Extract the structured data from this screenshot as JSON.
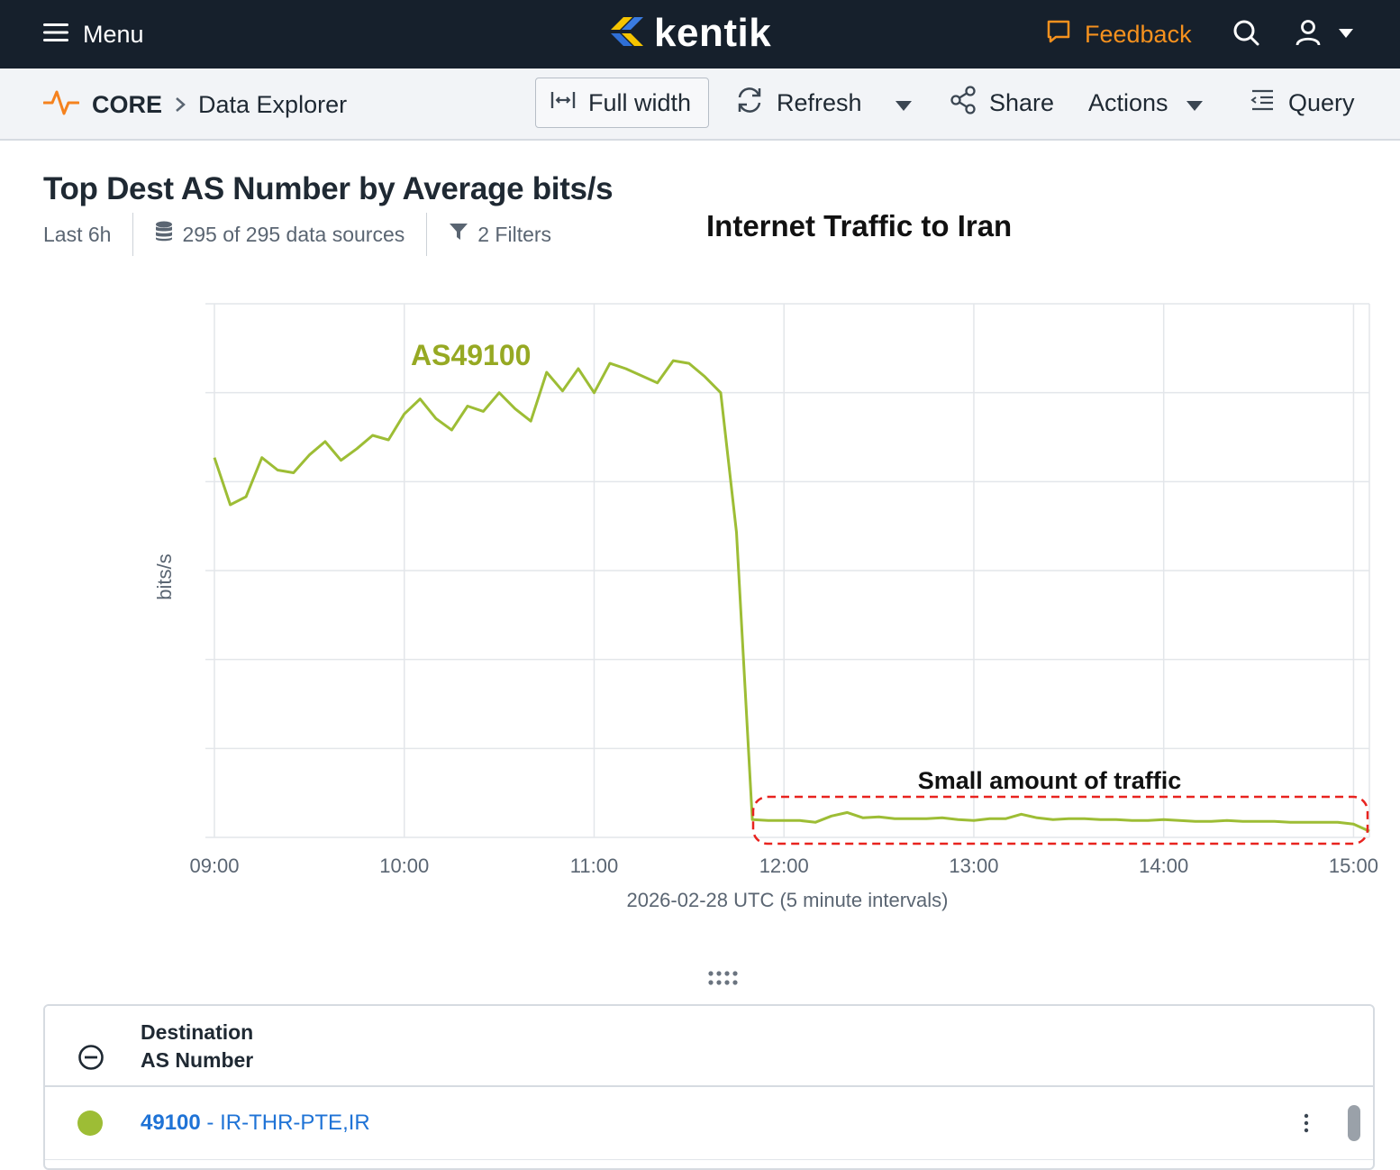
{
  "nav": {
    "menu_label": "Menu",
    "logo_text": "kentik",
    "feedback_label": "Feedback"
  },
  "toolbar": {
    "breadcrumb_root": "CORE",
    "breadcrumb_page": "Data Explorer",
    "full_width_label": "Full width",
    "refresh_label": "Refresh",
    "share_label": "Share",
    "actions_label": "Actions",
    "query_label": "Query"
  },
  "page": {
    "title": "Top Dest AS Number by Average bits/s",
    "time_range": "Last 6h",
    "data_sources": "295 of 295 data sources",
    "filters": "2 Filters"
  },
  "annotations": {
    "title": "Internet Traffic to Iran",
    "series_label": "AS49100",
    "callout": "Small amount of traffic"
  },
  "colors": {
    "series": "#9dbd35",
    "series_label": "#96a923",
    "callout": "#e8231f",
    "accent": "#f5911e",
    "link": "#1f73d6"
  },
  "chart_data": {
    "type": "line",
    "ylabel": "bits/s",
    "xlabel": "2026-02-28 UTC (5 minute intervals)",
    "x_ticks": [
      "09:00",
      "10:00",
      "11:00",
      "12:00",
      "13:00",
      "14:00",
      "15:00"
    ],
    "x_range": [
      "09:00",
      "15:05"
    ],
    "y_range": [
      0,
      6
    ],
    "y_ticks_shown": false,
    "grid": true,
    "series": [
      {
        "name": "AS49100",
        "x": [
          "09:00",
          "09:05",
          "09:10",
          "09:15",
          "09:20",
          "09:25",
          "09:30",
          "09:35",
          "09:40",
          "09:45",
          "09:50",
          "09:55",
          "10:00",
          "10:05",
          "10:10",
          "10:15",
          "10:20",
          "10:25",
          "10:30",
          "10:35",
          "10:40",
          "10:45",
          "10:50",
          "10:55",
          "11:00",
          "11:05",
          "11:10",
          "11:15",
          "11:20",
          "11:25",
          "11:30",
          "11:35",
          "11:40",
          "11:45",
          "11:50",
          "11:55",
          "12:00",
          "12:05",
          "12:10",
          "12:15",
          "12:20",
          "12:25",
          "12:30",
          "12:35",
          "12:40",
          "12:45",
          "12:50",
          "12:55",
          "13:00",
          "13:05",
          "13:10",
          "13:15",
          "13:20",
          "13:25",
          "13:30",
          "13:35",
          "13:40",
          "13:45",
          "13:50",
          "13:55",
          "14:00",
          "14:05",
          "14:10",
          "14:15",
          "14:20",
          "14:25",
          "14:30",
          "14:35",
          "14:40",
          "14:45",
          "14:50",
          "14:55",
          "15:00",
          "15:05"
        ],
        "y": [
          4.27,
          3.74,
          3.83,
          4.27,
          4.13,
          4.1,
          4.3,
          4.45,
          4.24,
          4.37,
          4.52,
          4.47,
          4.76,
          4.93,
          4.71,
          4.58,
          4.85,
          4.79,
          5.0,
          4.82,
          4.68,
          5.23,
          5.02,
          5.27,
          5.0,
          5.33,
          5.27,
          5.19,
          5.11,
          5.36,
          5.33,
          5.18,
          5.0,
          3.43,
          0.2,
          0.19,
          0.19,
          0.19,
          0.17,
          0.24,
          0.28,
          0.22,
          0.23,
          0.21,
          0.21,
          0.21,
          0.22,
          0.2,
          0.19,
          0.21,
          0.21,
          0.26,
          0.22,
          0.2,
          0.21,
          0.21,
          0.2,
          0.2,
          0.19,
          0.19,
          0.2,
          0.19,
          0.18,
          0.18,
          0.19,
          0.18,
          0.18,
          0.18,
          0.17,
          0.17,
          0.17,
          0.17,
          0.15,
          0.07
        ]
      }
    ]
  },
  "table": {
    "header_line1": "Destination",
    "header_line2": "AS Number",
    "rows": [
      {
        "asn": "49100",
        "name": "- IR-THR-PTE,IR"
      }
    ]
  }
}
